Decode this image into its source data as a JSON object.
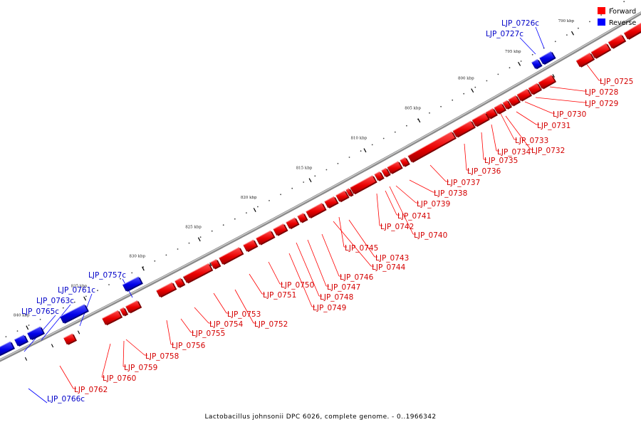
{
  "caption": "Lactobacillus johnsonii DPC 6026, complete genome. - 0..1966342",
  "legend": [
    {
      "label": "Forward",
      "color": "#ff0000"
    },
    {
      "label": "Reverse",
      "color": "#0000ff"
    }
  ],
  "scale_ticks": [
    "790 kbp",
    "795 kbp",
    "800 kbp",
    "805 kbp",
    "810 kbp",
    "815 kbp",
    "820 kbp",
    "825 kbp",
    "830 kbp",
    "835 kbp",
    "840 kbp"
  ],
  "forward_genes": [
    "LJP_0725",
    "LJP_0728",
    "LJP_0729",
    "LJP_0730",
    "LJP_0731",
    "LJP_0732",
    "LJP_0733",
    "LJP_0734",
    "LJP_0735",
    "LJP_0736",
    "LJP_0737",
    "LJP_0738",
    "LJP_0739",
    "LJP_0741",
    "LJP_0742",
    "LJP_0740",
    "LJP_0745",
    "LJP_0743",
    "LJP_0744",
    "LJP_0746",
    "LJP_0747",
    "LJP_0748",
    "LJP_0749",
    "LJP_0750",
    "LJP_0751",
    "LJP_0753",
    "LJP_0752",
    "LJP_0754",
    "LJP_0755",
    "LJP_0756",
    "LJP_0758",
    "LJP_0759",
    "LJP_0760",
    "LJP_0762"
  ],
  "reverse_genes": [
    "LJP_0726c",
    "LJP_0727c",
    "LJP_0757c",
    "LJP_0761c",
    "LJP_0763c",
    "LJP_0765c",
    "LJP_0766c"
  ]
}
